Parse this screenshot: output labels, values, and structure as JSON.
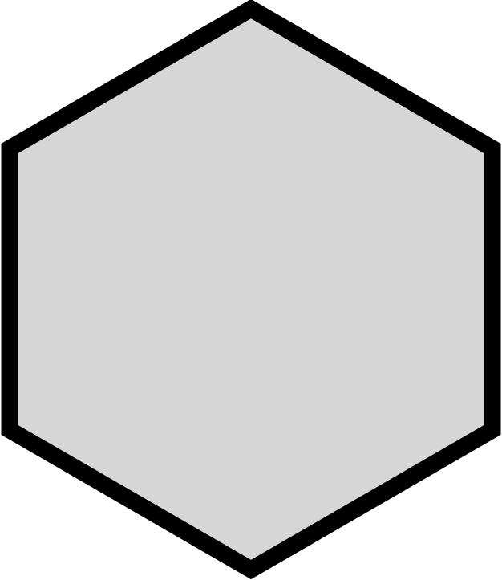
{
  "shape": {
    "kind": "hexagon",
    "orientation": "pointy-top",
    "colors": {
      "fill": "#d6d6d6",
      "stroke": "#000000",
      "background": "#ffffff"
    }
  }
}
